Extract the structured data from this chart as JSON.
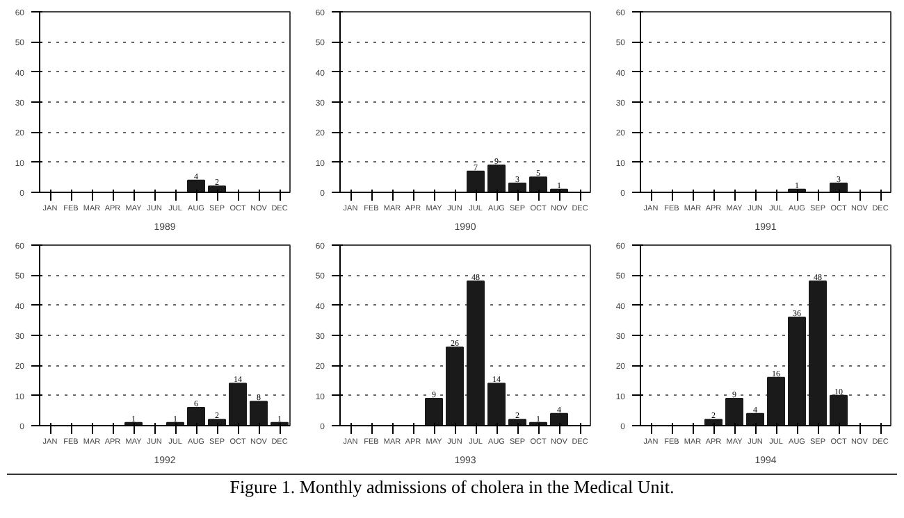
{
  "chart_data": [
    {
      "type": "bar",
      "xlabel": "1989",
      "categories": [
        "JAN",
        "FEB",
        "MAR",
        "APR",
        "MAY",
        "JUN",
        "JUL",
        "AUG",
        "SEP",
        "OCT",
        "NOV",
        "DEC"
      ],
      "values": [
        0,
        0,
        0,
        0,
        0,
        0,
        0,
        4,
        2,
        0,
        0,
        0
      ],
      "value_labels": [
        null,
        null,
        null,
        null,
        null,
        null,
        null,
        "4",
        "2",
        null,
        null,
        null
      ],
      "color": "#1a1a1a",
      "ylim": [
        0,
        60
      ],
      "yticks": [
        0,
        10,
        20,
        30,
        40,
        50,
        60
      ],
      "grid": "y"
    },
    {
      "type": "bar",
      "xlabel": "1990",
      "categories": [
        "JAN",
        "FEB",
        "MAR",
        "APR",
        "MAY",
        "JUN",
        "JUL",
        "AUG",
        "SEP",
        "OCT",
        "NOV",
        "DEC"
      ],
      "values": [
        0,
        0,
        0,
        0,
        0,
        0,
        7,
        9,
        3,
        5,
        1,
        0
      ],
      "value_labels": [
        null,
        null,
        null,
        null,
        null,
        null,
        "7",
        "9",
        "3",
        "5",
        "1",
        null
      ],
      "color": "#1a1a1a",
      "ylim": [
        0,
        60
      ],
      "yticks": [
        0,
        10,
        20,
        30,
        40,
        50,
        60
      ],
      "grid": "y"
    },
    {
      "type": "bar",
      "xlabel": "1991",
      "categories": [
        "JAN",
        "FEB",
        "MAR",
        "APR",
        "MAY",
        "JUN",
        "JUL",
        "AUG",
        "SEP",
        "OCT",
        "NOV",
        "DEC"
      ],
      "values": [
        0,
        0,
        0,
        0,
        0,
        0,
        0,
        1,
        0,
        3,
        0,
        0
      ],
      "value_labels": [
        null,
        null,
        null,
        null,
        null,
        null,
        null,
        "1",
        null,
        "3",
        null,
        null
      ],
      "color": "#1a1a1a",
      "ylim": [
        0,
        60
      ],
      "yticks": [
        0,
        10,
        20,
        30,
        40,
        50,
        60
      ],
      "grid": "y"
    },
    {
      "type": "bar",
      "xlabel": "1992",
      "categories": [
        "JAN",
        "FEB",
        "MAR",
        "APR",
        "MAY",
        "JUN",
        "JUL",
        "AUG",
        "SEP",
        "OCT",
        "NOV",
        "DEC"
      ],
      "values": [
        0,
        0,
        0,
        0,
        1,
        0,
        1,
        6,
        2,
        14,
        8,
        1
      ],
      "value_labels": [
        null,
        null,
        null,
        null,
        "1",
        null,
        "1",
        "6",
        "2",
        "14",
        "8",
        "1"
      ],
      "color": "#1a1a1a",
      "ylim": [
        0,
        60
      ],
      "yticks": [
        0,
        10,
        20,
        30,
        40,
        50,
        60
      ],
      "grid": "y"
    },
    {
      "type": "bar",
      "xlabel": "1993",
      "categories": [
        "JAN",
        "FEB",
        "MAR",
        "APR",
        "MAY",
        "JUN",
        "JUL",
        "AUG",
        "SEP",
        "OCT",
        "NOV",
        "DEC"
      ],
      "values": [
        0,
        0,
        0,
        0,
        9,
        26,
        48,
        14,
        2,
        1,
        4,
        0
      ],
      "value_labels": [
        null,
        null,
        null,
        null,
        "9",
        "26",
        "48",
        "14",
        "2",
        "1",
        "4",
        null
      ],
      "color": "#1a1a1a",
      "ylim": [
        0,
        60
      ],
      "yticks": [
        0,
        10,
        20,
        30,
        40,
        50,
        60
      ],
      "grid": "y"
    },
    {
      "type": "bar",
      "xlabel": "1994",
      "categories": [
        "JAN",
        "FEB",
        "MAR",
        "APR",
        "MAY",
        "JUN",
        "JUL",
        "AUG",
        "SEP",
        "OCT",
        "NOV",
        "DEC"
      ],
      "values": [
        0,
        0,
        0,
        2,
        9,
        4,
        16,
        36,
        48,
        10,
        0,
        0
      ],
      "value_labels": [
        null,
        null,
        null,
        "2",
        "9",
        "4",
        "16",
        "36",
        "48",
        "10",
        null,
        null
      ],
      "color": "#1a1a1a",
      "ylim": [
        0,
        60
      ],
      "yticks": [
        0,
        10,
        20,
        30,
        40,
        50,
        60
      ],
      "grid": "y"
    },
    {
      "type": "other",
      "annotations": [
        "Figure 1. Monthly admissions of cholera in the Medical Unit."
      ]
    }
  ]
}
